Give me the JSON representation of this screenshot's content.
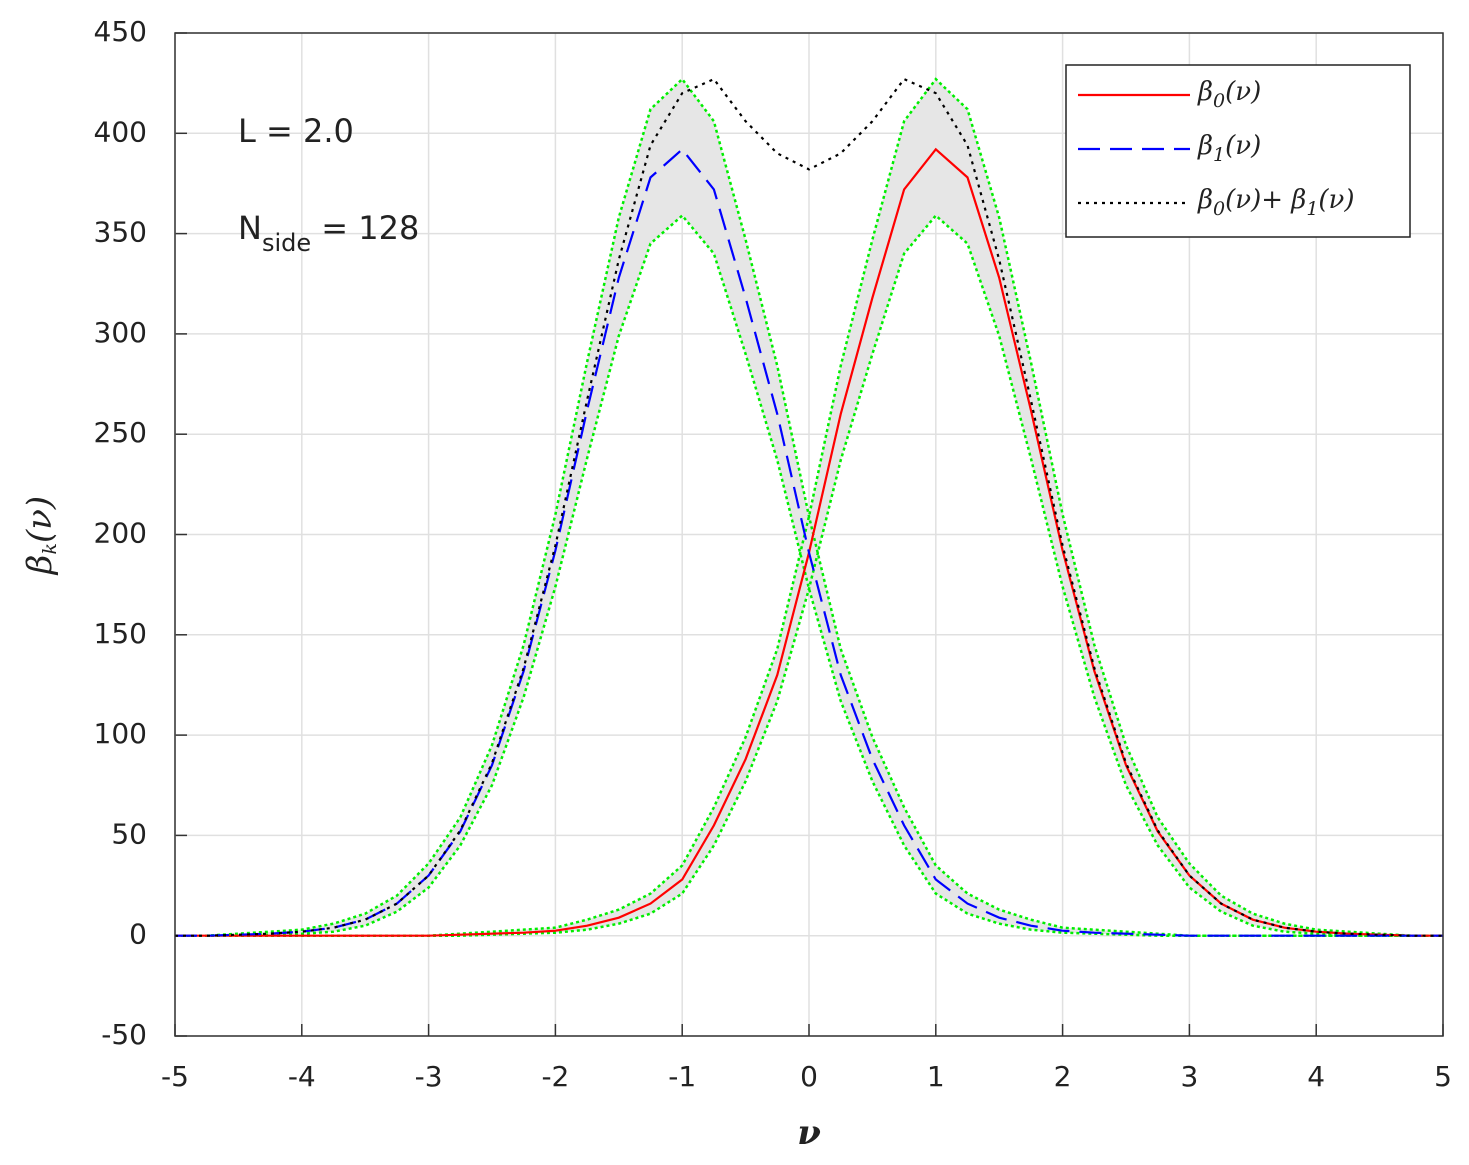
{
  "chart_data": {
    "type": "line",
    "xlabel": "ν",
    "ylabel": "βk(ν)",
    "annotations": [
      {
        "parts": [
          "L = 2.0"
        ]
      },
      {
        "parts": [
          "N",
          "side",
          " = 128"
        ]
      }
    ],
    "x": [
      -5,
      -4.75,
      -4.5,
      -4.25,
      -4,
      -3.75,
      -3.5,
      -3.25,
      -3,
      -2.75,
      -2.5,
      -2.25,
      -2,
      -1.75,
      -1.5,
      -1.25,
      -1,
      -0.75,
      -0.5,
      -0.25,
      0,
      0.25,
      0.5,
      0.75,
      1,
      1.25,
      1.5,
      1.75,
      2,
      2.25,
      2.5,
      2.75,
      3,
      3.25,
      3.5,
      3.75,
      4,
      4.25,
      4.5,
      4.75,
      5
    ],
    "series": [
      {
        "name": "β0(ν)",
        "color": "#ff0000",
        "dash": "solid",
        "values": [
          0,
          0,
          0,
          0,
          0,
          0,
          0,
          0,
          0,
          0.5,
          1,
          1.5,
          2.5,
          5,
          9,
          16,
          28,
          55,
          88,
          130,
          191,
          260,
          318,
          372,
          392,
          378,
          328,
          262,
          192,
          132,
          85,
          52,
          30,
          16,
          8,
          4,
          2,
          1,
          0.5,
          0,
          0
        ]
      },
      {
        "name": "β1(ν)",
        "color": "#0000ff",
        "dash": "dashed",
        "values": [
          0,
          0,
          0.5,
          1,
          2,
          4,
          8,
          16,
          30,
          52,
          85,
          132,
          192,
          262,
          328,
          378,
          392,
          372,
          318,
          260,
          191,
          130,
          88,
          55,
          28,
          16,
          9,
          5,
          2.5,
          1.5,
          1,
          0.5,
          0,
          0,
          0,
          0,
          0,
          0,
          0,
          0,
          0
        ]
      },
      {
        "name": "β0(ν)+ β1(ν)",
        "color": "#000000",
        "dash": "dotted",
        "values": [
          0,
          0,
          0.5,
          1,
          2,
          4,
          8,
          16,
          30,
          52.5,
          86,
          133.5,
          194.5,
          267,
          337,
          394,
          420,
          427,
          406,
          390,
          382,
          390,
          406,
          427,
          420,
          394,
          337,
          267,
          194.5,
          133.5,
          86,
          52.5,
          30,
          16,
          8,
          4,
          2,
          1,
          0.5,
          0,
          0
        ]
      }
    ],
    "bands": [
      {
        "color": "#00ee00",
        "fill": "#e6e6e6",
        "upper": [
          0,
          0,
          0,
          0,
          0,
          0,
          0,
          0,
          0,
          1,
          2,
          3,
          4,
          8,
          13,
          21,
          35,
          64,
          99,
          143,
          209,
          284,
          347,
          406,
          427,
          412,
          358,
          286,
          210,
          145,
          95,
          59,
          36,
          20,
          11,
          6,
          3,
          2,
          1,
          0,
          0
        ],
        "lower": [
          0,
          0,
          0,
          0,
          0,
          0,
          0,
          0,
          0,
          0,
          0.5,
          1,
          1.5,
          3,
          6,
          11,
          21,
          45,
          77,
          117,
          173,
          237,
          290,
          340,
          359,
          345,
          299,
          238,
          174,
          119,
          75,
          45,
          24,
          12,
          5,
          2,
          1,
          0.5,
          0,
          0,
          0
        ]
      },
      {
        "color": "#00ee00",
        "fill": "#e6e6e6",
        "upper": [
          0,
          0,
          1,
          2,
          3,
          6,
          11,
          20,
          36,
          59,
          95,
          145,
          210,
          286,
          358,
          412,
          427,
          406,
          347,
          284,
          209,
          143,
          99,
          64,
          35,
          21,
          13,
          8,
          4,
          3,
          2,
          1,
          0,
          0,
          0,
          0,
          0,
          0,
          0,
          0,
          0
        ],
        "lower": [
          0,
          0,
          0,
          0.5,
          1,
          2,
          5,
          12,
          24,
          45,
          75,
          119,
          174,
          238,
          299,
          345,
          359,
          340,
          290,
          237,
          173,
          117,
          77,
          45,
          21,
          11,
          6,
          3,
          1.5,
          1,
          0.5,
          0,
          0,
          0,
          0,
          0,
          0,
          0,
          0,
          0,
          0
        ]
      }
    ],
    "xlim": [
      -5,
      5
    ],
    "ylim": [
      -50,
      450
    ],
    "xticks": [
      -5,
      -4,
      -3,
      -2,
      -1,
      0,
      1,
      2,
      3,
      4,
      5
    ],
    "yticks": [
      -50,
      0,
      50,
      100,
      150,
      200,
      250,
      300,
      350,
      400,
      450
    ],
    "grid": true,
    "legend": "upper right"
  }
}
